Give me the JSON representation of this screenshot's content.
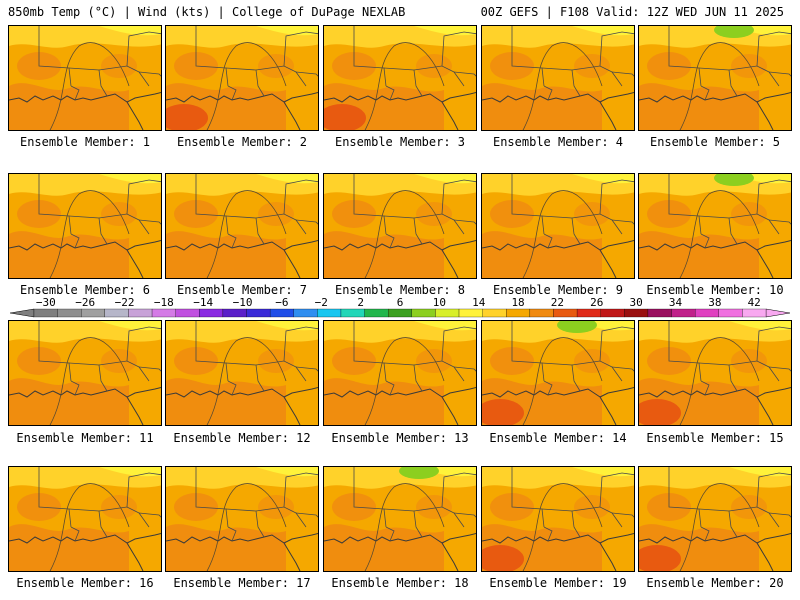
{
  "header": {
    "left": "850mb Temp (°C) | Wind (kts) | College of DuPage NEXLAB",
    "right": "00Z GEFS | F108 Valid: 12Z WED JUN 11 2025"
  },
  "member_label_prefix": "Ensemble Member: ",
  "members": [
    "1",
    "2",
    "3",
    "4",
    "5",
    "6",
    "7",
    "8",
    "9",
    "10",
    "11",
    "12",
    "13",
    "14",
    "15",
    "16",
    "17",
    "18",
    "19",
    "20"
  ],
  "colorbar": {
    "tick_labels": [
      "−30",
      "−26",
      "−22",
      "−18",
      "−14",
      "−10",
      "−6",
      "−2",
      "2",
      "6",
      "10",
      "14",
      "18",
      "22",
      "26",
      "30",
      "34",
      "38",
      "42"
    ],
    "colors": [
      "#7f7f7f",
      "#8f8f8f",
      "#a0a0a0",
      "#b6b6c9",
      "#c8a2d8",
      "#d47ae6",
      "#c050e0",
      "#8a2be2",
      "#5a1fc9",
      "#3a2ad8",
      "#1f4ee8",
      "#2f8ef0",
      "#18c6f0",
      "#22d6b8",
      "#22b64c",
      "#3ca020",
      "#8ccf1f",
      "#d8ef2a",
      "#fff23a",
      "#ffd22a",
      "#f5a800",
      "#f08a10",
      "#e85a10",
      "#e02a18",
      "#c01818",
      "#9a1010",
      "#9a1060",
      "#c0208a",
      "#e040c0",
      "#f070e0",
      "#f8a8f0"
    ],
    "fill_colors": {
      "base": "#f5a800",
      "warm": "#f08a10",
      "hot": "#e85a10",
      "cool": "#ffd22a",
      "cooler": "#fff23a",
      "green": "#8ccf1f"
    }
  }
}
